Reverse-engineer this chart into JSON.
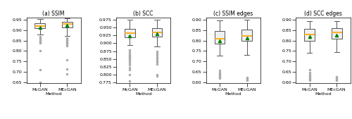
{
  "subplots": [
    {
      "title": "(a) SSIM",
      "xlabel": "Method",
      "ylim": [
        0.645,
        0.962
      ],
      "yticks": [
        0.65,
        0.7,
        0.75,
        0.8,
        0.85,
        0.9,
        0.95
      ],
      "categories": [
        "McGAN",
        "MEcGAN"
      ],
      "box_data": [
        {
          "med": 0.921,
          "q1": 0.909,
          "q3": 0.934,
          "whislo": 0.878,
          "whishi": 0.955,
          "mean": 0.913,
          "fliers": [
            0.868,
            0.862,
            0.856,
            0.851,
            0.847,
            0.843,
            0.838,
            0.8,
            0.71,
            0.651
          ]
        },
        {
          "med": 0.929,
          "q1": 0.913,
          "q3": 0.94,
          "whislo": 0.872,
          "whishi": 0.958,
          "mean": 0.922,
          "fliers": [
            0.862,
            0.857,
            0.852,
            0.848,
            0.843,
            0.838,
            0.832,
            0.825,
            0.756,
            0.712,
            0.691
          ]
        }
      ]
    },
    {
      "title": "(b) SCC",
      "xlabel": "Method",
      "ylim": [
        0.773,
        0.982
      ],
      "yticks": [
        0.775,
        0.8,
        0.825,
        0.85,
        0.875,
        0.9,
        0.925,
        0.95,
        0.975
      ],
      "categories": [
        "McGAN",
        "MEcGAN"
      ],
      "box_data": [
        {
          "med": 0.932,
          "q1": 0.918,
          "q3": 0.946,
          "whislo": 0.895,
          "whishi": 0.975,
          "mean": 0.924,
          "fliers": [
            0.878,
            0.871,
            0.866,
            0.861,
            0.857,
            0.853,
            0.849,
            0.844,
            0.838,
            0.831,
            0.822,
            0.815,
            0.8,
            0.78
          ]
        },
        {
          "med": 0.934,
          "q1": 0.921,
          "q3": 0.947,
          "whislo": 0.89,
          "whishi": 0.975,
          "mean": 0.93,
          "fliers": [
            0.875,
            0.868,
            0.862,
            0.857,
            0.851,
            0.846,
            0.84,
            0.833,
            0.8,
            0.795
          ]
        }
      ]
    },
    {
      "title": "(c) SSIM edges",
      "xlabel": "Method",
      "ylim": [
        0.595,
        0.912
      ],
      "yticks": [
        0.6,
        0.65,
        0.7,
        0.75,
        0.8,
        0.85,
        0.9
      ],
      "categories": [
        "McGAN",
        "MEcGAN"
      ],
      "box_data": [
        {
          "med": 0.81,
          "q1": 0.784,
          "q3": 0.845,
          "whislo": 0.728,
          "whishi": 0.898,
          "mean": 0.8,
          "fliers": [
            0.658,
            0.648,
            0.64,
            0.632,
            0.625,
            0.618
          ]
        },
        {
          "med": 0.824,
          "q1": 0.8,
          "q3": 0.854,
          "whislo": 0.73,
          "whishi": 0.9,
          "mean": 0.812,
          "fliers": [
            0.622,
            0.615,
            0.61
          ]
        }
      ]
    },
    {
      "title": "(d) SCC edges",
      "xlabel": "Method",
      "ylim": [
        0.595,
        0.912
      ],
      "yticks": [
        0.6,
        0.65,
        0.7,
        0.75,
        0.8,
        0.85,
        0.9
      ],
      "categories": [
        "McGAN",
        "MEcGAN"
      ],
      "box_data": [
        {
          "med": 0.83,
          "q1": 0.8,
          "q3": 0.856,
          "whislo": 0.74,
          "whishi": 0.895,
          "mean": 0.818,
          "fliers": [
            0.66,
            0.648,
            0.638,
            0.63,
            0.622,
            0.615,
            0.608
          ]
        },
        {
          "med": 0.838,
          "q1": 0.808,
          "q3": 0.861,
          "whislo": 0.745,
          "whishi": 0.895,
          "mean": 0.825,
          "fliers": [
            0.628,
            0.62,
            0.615,
            0.61
          ]
        }
      ]
    }
  ],
  "median_color": "#FFA500",
  "mean_color": "#008000",
  "box_facecolor": "#f0f0f0",
  "box_edgecolor": "#555555",
  "whisker_color": "#555555",
  "flier_color": "#aaaaaa",
  "flier_size": 1.5,
  "mean_marker": "^",
  "mean_size": 3
}
